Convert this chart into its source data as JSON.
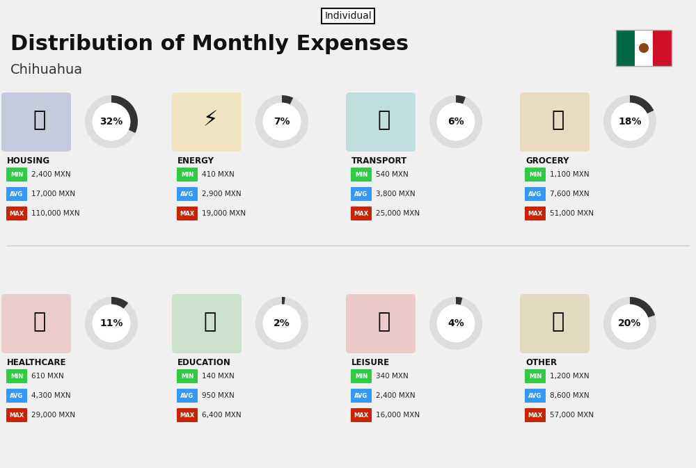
{
  "title": "Distribution of Monthly Expenses",
  "subtitle": "Individual",
  "location": "Chihuahua",
  "bg_color": "#f0f0f0",
  "categories": [
    {
      "name": "HOUSING",
      "pct": 32,
      "min": "2,400 MXN",
      "avg": "17,000 MXN",
      "max": "110,000 MXN",
      "icon_color": "#2b4a8c",
      "row": 0,
      "col": 0
    },
    {
      "name": "ENERGY",
      "pct": 7,
      "min": "410 MXN",
      "avg": "2,900 MXN",
      "max": "19,000 MXN",
      "icon_color": "#f5a623",
      "row": 0,
      "col": 1
    },
    {
      "name": "TRANSPORT",
      "pct": 6,
      "min": "540 MXN",
      "avg": "3,800 MXN",
      "max": "25,000 MXN",
      "icon_color": "#00a0b0",
      "row": 0,
      "col": 2
    },
    {
      "name": "GROCERY",
      "pct": 18,
      "min": "1,100 MXN",
      "avg": "7,600 MXN",
      "max": "51,000 MXN",
      "icon_color": "#e8a020",
      "row": 0,
      "col": 3
    },
    {
      "name": "HEALTHCARE",
      "pct": 11,
      "min": "610 MXN",
      "avg": "4,300 MXN",
      "max": "29,000 MXN",
      "icon_color": "#e84444",
      "row": 1,
      "col": 0
    },
    {
      "name": "EDUCATION",
      "pct": 2,
      "min": "140 MXN",
      "avg": "950 MXN",
      "max": "6,400 MXN",
      "icon_color": "#5bba6f",
      "row": 1,
      "col": 1
    },
    {
      "name": "LEISURE",
      "pct": 4,
      "min": "340 MXN",
      "avg": "2,400 MXN",
      "max": "16,000 MXN",
      "icon_color": "#e84444",
      "row": 1,
      "col": 2
    },
    {
      "name": "OTHER",
      "pct": 20,
      "min": "1,200 MXN",
      "avg": "8,600 MXN",
      "max": "57,000 MXN",
      "icon_color": "#c8a060",
      "row": 1,
      "col": 3
    }
  ],
  "min_color": "#2ecc40",
  "avg_color": "#3399ff",
  "max_color": "#cc2200",
  "arc_color": "#333333",
  "arc_bg_color": "#dddddd"
}
